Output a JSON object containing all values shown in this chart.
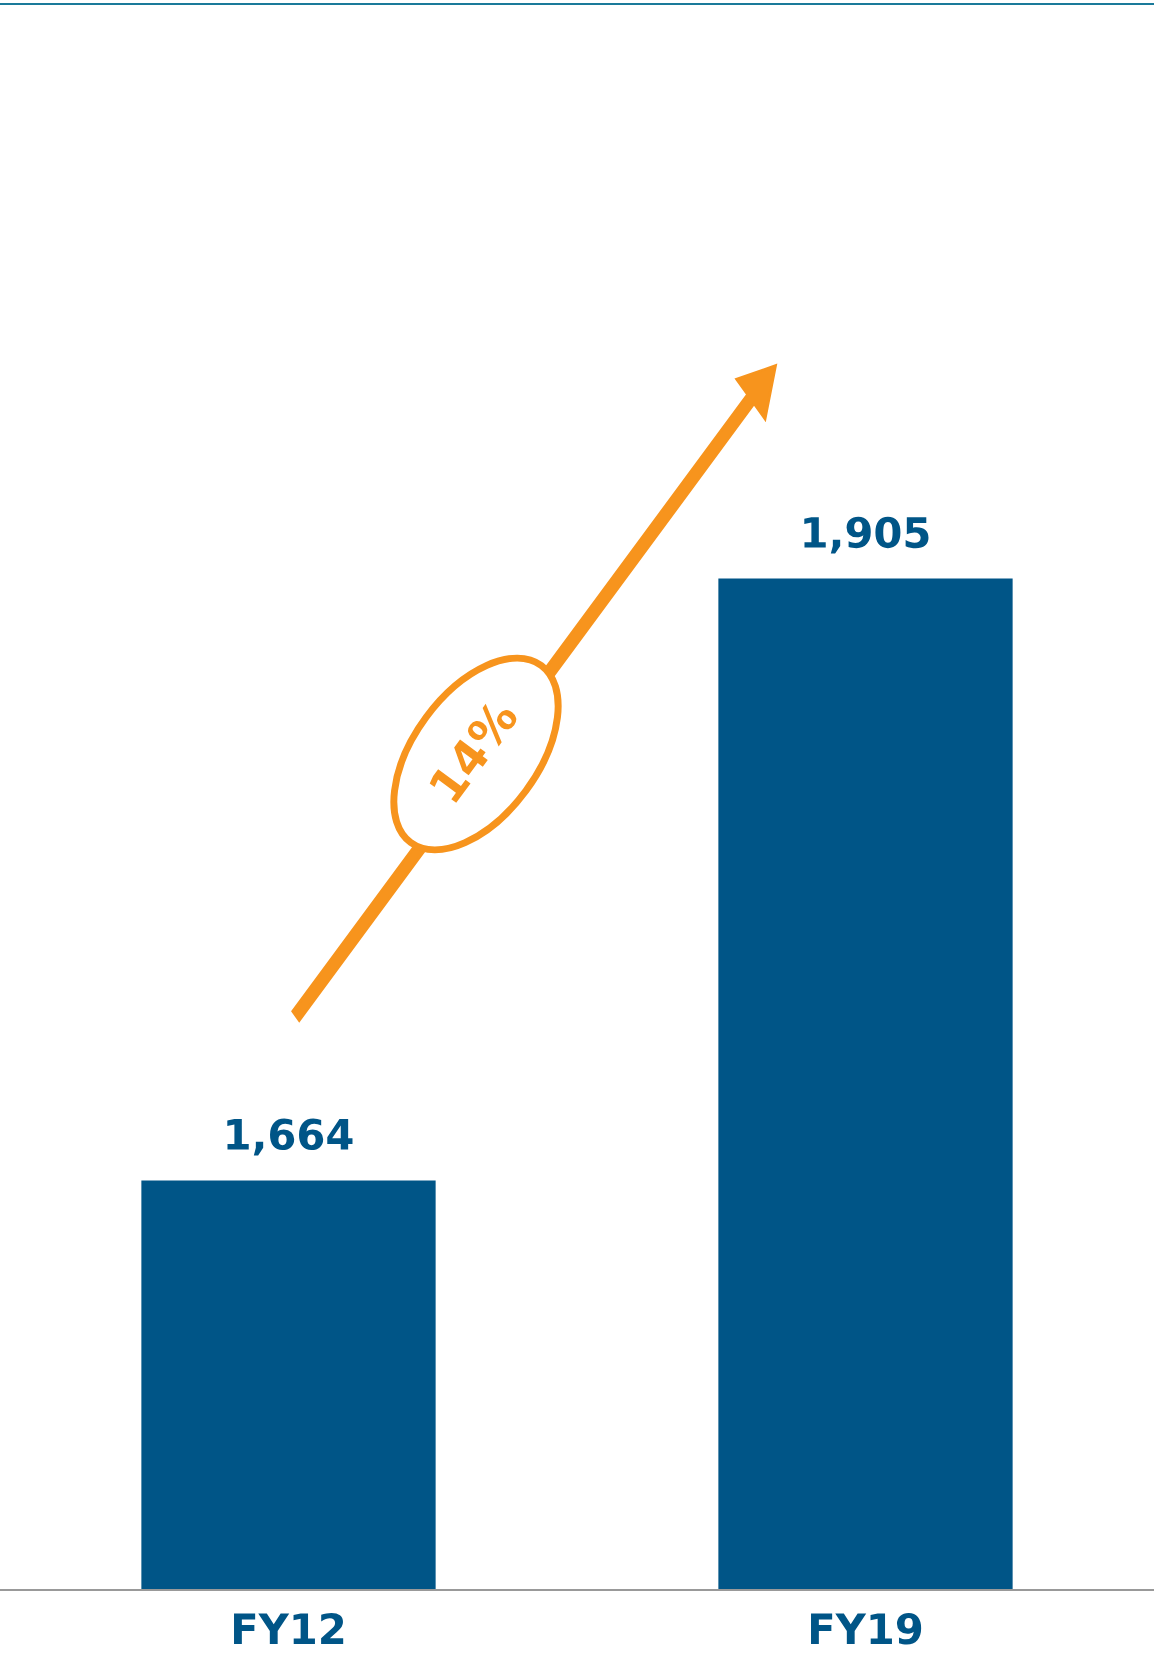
{
  "chart_data": {
    "type": "bar",
    "categories": [
      "FY12",
      "FY19"
    ],
    "values": [
      1664,
      1905
    ],
    "value_labels": [
      "1,664",
      "1,905"
    ],
    "color": "#005587",
    "ylim": [
      1500,
      2135
    ],
    "tick_labels": "x",
    "grid": false,
    "legend": false,
    "annotations": [
      "14%"
    ]
  }
}
